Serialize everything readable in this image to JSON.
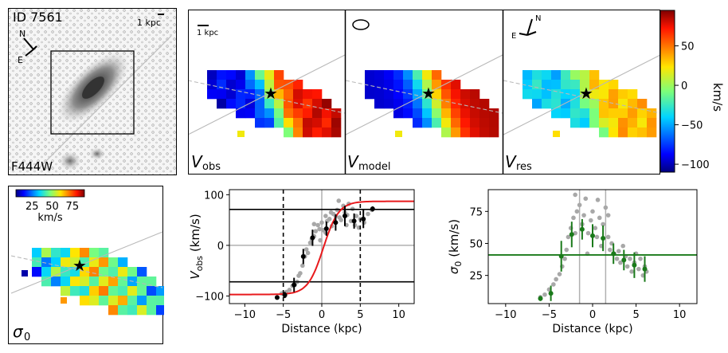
{
  "colors": {
    "obs_curve": "#e8191c",
    "disp": "#1a7a1a",
    "grey_pts": "#a8a8a8",
    "black": "#000000"
  },
  "image_panel": {
    "id_label": "ID 7561",
    "scale_label": "1 kpc",
    "filter_label": "F444W",
    "north_label": "N",
    "east_label": "E"
  },
  "maps": {
    "scale_label": "1 kpc",
    "north_label": "N",
    "east_label": "E",
    "panels": [
      {
        "label_main": "V",
        "label_sub": "obs"
      },
      {
        "label_main": "V",
        "label_sub": "model"
      },
      {
        "label_main": "V",
        "label_sub": "res"
      }
    ],
    "colorbar": {
      "unit": "km/s",
      "ticks": [
        "50",
        "0",
        "−50",
        "−100"
      ],
      "tick_values": [
        50,
        0,
        -50,
        -100
      ],
      "range": [
        -110,
        95
      ]
    }
  },
  "sigma_map": {
    "label_main": "σ",
    "label_sub": "0",
    "colorbar_ticks": [
      "25",
      "50",
      "75"
    ],
    "colorbar_tick_values": [
      25,
      50,
      75
    ],
    "colorbar_range": [
      5,
      90
    ],
    "colorbar_unit": "km/s"
  },
  "chart_data": [
    {
      "type": "line",
      "xlabel": "Distance (kpc)",
      "ylabel_main": "V",
      "ylabel_sub": "obs",
      "ylabel_unit": " (km/s)",
      "xlim": [
        -12,
        12
      ],
      "ylim": [
        -115,
        110
      ],
      "xticks": [
        -10,
        -5,
        0,
        5,
        10
      ],
      "xtick_labels": [
        "−10",
        "−5",
        "0",
        "5",
        "10"
      ],
      "yticks": [
        100,
        0,
        -100
      ],
      "ytick_labels": [
        "100",
        "0",
        "−100"
      ],
      "hlines_black": [
        71,
        -72
      ],
      "vlines_dashed": [
        -5,
        5
      ],
      "vlines_grey": [
        0
      ],
      "hlines_grey": [
        0
      ],
      "model_curve": {
        "vflat": 92,
        "rt": 2.0,
        "x0": 0.2,
        "v0": -5
      },
      "grey_points": [
        [
          -5.2,
          -95
        ],
        [
          -4.8,
          -100
        ],
        [
          -4.6,
          -92
        ],
        [
          -4.2,
          -88
        ],
        [
          -3.8,
          -80
        ],
        [
          -3.5,
          -78
        ],
        [
          -3.2,
          -72
        ],
        [
          -3.0,
          -60
        ],
        [
          -2.8,
          -55
        ],
        [
          -2.5,
          -40
        ],
        [
          -2.2,
          -22
        ],
        [
          -2.0,
          -8
        ],
        [
          -1.8,
          -15
        ],
        [
          -1.5,
          5
        ],
        [
          -1.3,
          12
        ],
        [
          -1.0,
          18
        ],
        [
          -0.8,
          28
        ],
        [
          -0.5,
          40
        ],
        [
          -0.3,
          32
        ],
        [
          0.0,
          45
        ],
        [
          0.2,
          30
        ],
        [
          0.5,
          58
        ],
        [
          0.7,
          48
        ],
        [
          1.0,
          52
        ],
        [
          1.3,
          38
        ],
        [
          1.5,
          62
        ],
        [
          1.8,
          45
        ],
        [
          2.0,
          70
        ],
        [
          2.3,
          55
        ],
        [
          2.5,
          50
        ],
        [
          2.8,
          78
        ],
        [
          3.0,
          65
        ],
        [
          3.3,
          60
        ],
        [
          3.5,
          82
        ],
        [
          3.8,
          48
        ],
        [
          4.0,
          72
        ],
        [
          4.3,
          40
        ],
        [
          4.5,
          58
        ],
        [
          4.8,
          35
        ],
        [
          5.0,
          52
        ],
        [
          5.5,
          45
        ],
        [
          6.0,
          62
        ],
        [
          6.5,
          70
        ],
        [
          -1.0,
          42
        ],
        [
          0.5,
          25
        ],
        [
          1.2,
          65
        ],
        [
          2.2,
          88
        ],
        [
          3.2,
          40
        ],
        [
          -0.2,
          10
        ],
        [
          1.8,
          58
        ]
      ],
      "binned": [
        {
          "x": -5.8,
          "y": -103,
          "err": 4
        },
        {
          "x": -4.8,
          "y": -98,
          "err": 6
        },
        {
          "x": -3.6,
          "y": -78,
          "err": 14
        },
        {
          "x": -2.4,
          "y": -22,
          "err": 15
        },
        {
          "x": -1.2,
          "y": 15,
          "err": 16
        },
        {
          "x": 0.6,
          "y": 33,
          "err": 14
        },
        {
          "x": 1.8,
          "y": 45,
          "err": 16
        },
        {
          "x": 3.0,
          "y": 58,
          "err": 20
        },
        {
          "x": 4.2,
          "y": 48,
          "err": 15
        },
        {
          "x": 5.4,
          "y": 52,
          "err": 18
        },
        {
          "x": 6.6,
          "y": 72,
          "err": 5
        }
      ]
    },
    {
      "type": "scatter",
      "xlabel": "Distance (kpc)",
      "ylabel_main": "σ",
      "ylabel_sub": "0",
      "ylabel_unit": " (km/s)",
      "xlim": [
        -12,
        12
      ],
      "ylim": [
        3,
        92
      ],
      "xticks": [
        -10,
        -5,
        0,
        5,
        10
      ],
      "xtick_labels": [
        "−10",
        "−5",
        "0",
        "5",
        "10"
      ],
      "yticks": [
        75,
        50,
        25
      ],
      "ytick_labels": [
        "75",
        "50",
        "25"
      ],
      "hline_green": 41,
      "vlines_grey": [
        -1.5,
        1.5
      ],
      "grey_points": [
        [
          -6.0,
          8
        ],
        [
          -5.5,
          10
        ],
        [
          -5.0,
          14
        ],
        [
          -4.5,
          18
        ],
        [
          -4.2,
          22
        ],
        [
          -3.8,
          26
        ],
        [
          -3.5,
          32
        ],
        [
          -3.2,
          38
        ],
        [
          -3.0,
          45
        ],
        [
          -2.8,
          55
        ],
        [
          -2.5,
          62
        ],
        [
          -2.2,
          70
        ],
        [
          -2.0,
          58
        ],
        [
          -1.8,
          75
        ],
        [
          -1.5,
          80
        ],
        [
          -1.2,
          65
        ],
        [
          -1.0,
          72
        ],
        [
          -0.8,
          85
        ],
        [
          -0.5,
          58
        ],
        [
          -0.2,
          68
        ],
        [
          0.0,
          75
        ],
        [
          0.3,
          62
        ],
        [
          0.5,
          55
        ],
        [
          0.8,
          70
        ],
        [
          1.0,
          48
        ],
        [
          1.2,
          65
        ],
        [
          1.5,
          78
        ],
        [
          1.8,
          55
        ],
        [
          2.0,
          45
        ],
        [
          2.2,
          50
        ],
        [
          2.5,
          42
        ],
        [
          2.8,
          38
        ],
        [
          3.0,
          44
        ],
        [
          3.2,
          35
        ],
        [
          3.5,
          48
        ],
        [
          3.8,
          40
        ],
        [
          4.0,
          32
        ],
        [
          4.3,
          38
        ],
        [
          4.5,
          28
        ],
        [
          4.8,
          35
        ],
        [
          5.0,
          42
        ],
        [
          5.3,
          30
        ],
        [
          5.5,
          38
        ],
        [
          5.8,
          25
        ],
        [
          6.0,
          32
        ],
        [
          6.2,
          28
        ],
        [
          -2.0,
          88
        ],
        [
          0.6,
          84
        ],
        [
          1.8,
          72
        ],
        [
          -0.6,
          42
        ]
      ],
      "binned": [
        {
          "x": -6.0,
          "y": 7,
          "err": 2
        },
        {
          "x": -4.8,
          "y": 11,
          "err": 6
        },
        {
          "x": -3.6,
          "y": 40,
          "err": 12
        },
        {
          "x": -2.4,
          "y": 57,
          "err": 10
        },
        {
          "x": -1.2,
          "y": 61,
          "err": 8
        },
        {
          "x": 0.0,
          "y": 56,
          "err": 9
        },
        {
          "x": 1.2,
          "y": 54,
          "err": 10
        },
        {
          "x": 2.4,
          "y": 42,
          "err": 8
        },
        {
          "x": 3.6,
          "y": 37,
          "err": 8
        },
        {
          "x": 4.8,
          "y": 33,
          "err": 10
        },
        {
          "x": 6.0,
          "y": 30,
          "err": 10
        }
      ]
    }
  ]
}
